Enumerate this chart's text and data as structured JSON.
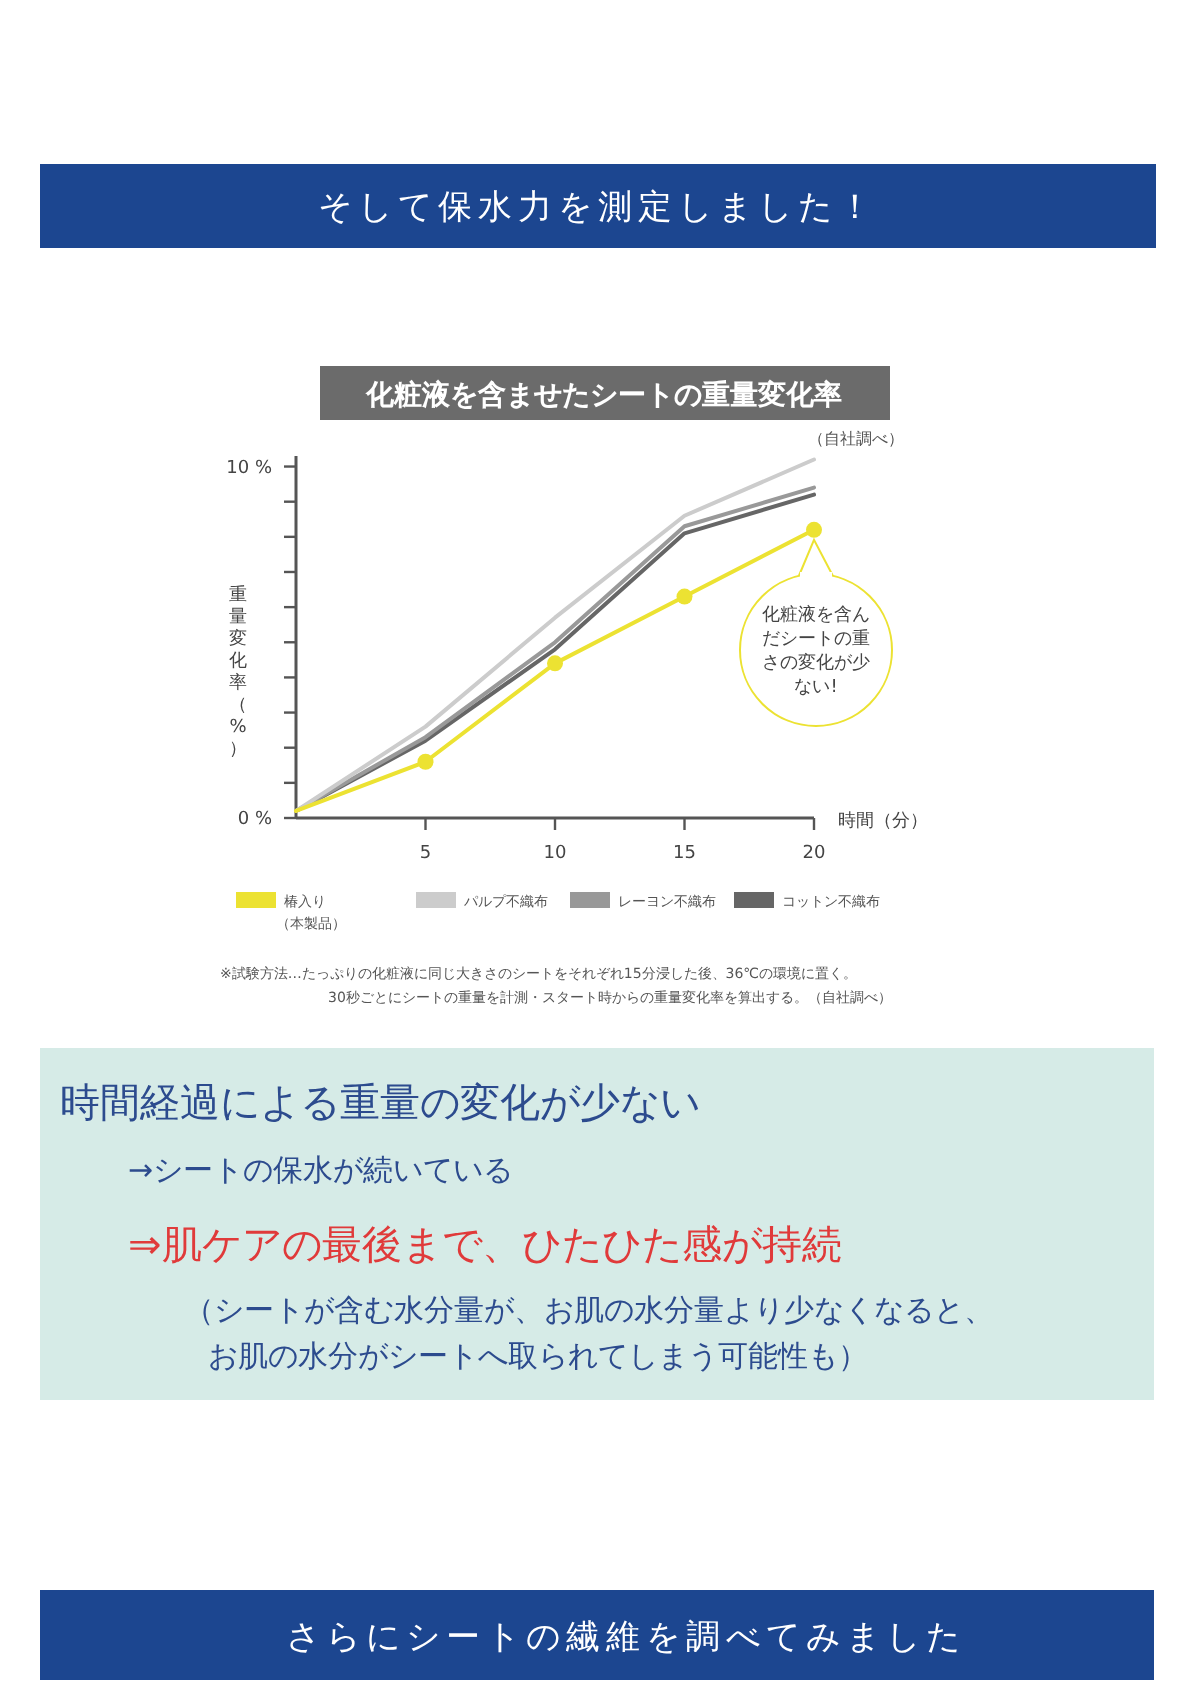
{
  "chart_data": {
    "type": "line",
    "title": "化粧液を含ませたシートの重量変化率",
    "xlabel": "時間（分）",
    "ylabel": "重量変化率（%）",
    "xlim": [
      0,
      20
    ],
    "xticks": [
      5,
      10,
      15,
      20
    ],
    "ylim": [
      0,
      10.3
    ],
    "yticks": [
      {
        "value": 0,
        "label": "0 %"
      },
      {
        "value": 1,
        "label": null
      },
      {
        "value": 2,
        "label": null
      },
      {
        "value": 3,
        "label": null
      },
      {
        "value": 4,
        "label": null
      },
      {
        "value": 5,
        "label": null
      },
      {
        "value": 6,
        "label": null
      },
      {
        "value": 7,
        "label": null
      },
      {
        "value": 8,
        "label": null
      },
      {
        "value": 9,
        "label": null
      },
      {
        "value": 10,
        "label": "10 %"
      }
    ],
    "x": [
      0,
      5,
      10,
      15,
      20
    ],
    "series": [
      {
        "name": "椿入り（本製品）",
        "color": "#ece232",
        "values": [
          0.2,
          1.6,
          4.4,
          6.3,
          8.2
        ],
        "marker": "circle"
      },
      {
        "name": "パルプ不織布",
        "color": "#cccccc",
        "values": [
          0.2,
          2.6,
          5.7,
          8.6,
          10.2
        ]
      },
      {
        "name": "レーヨン不織布",
        "color": "#999999",
        "values": [
          0.2,
          2.3,
          5.0,
          8.3,
          9.4
        ]
      },
      {
        "name": "コットン不織布",
        "color": "#666666",
        "values": [
          0.2,
          2.2,
          4.8,
          8.1,
          9.2
        ]
      }
    ],
    "legend": "bottom",
    "marker": "none",
    "line_style": "solid",
    "grid": false,
    "annotations": [
      "そして保水力を測定しました！",
      "（自社調べ）",
      "化粧液を含んだシートの重さの変化が少ない!",
      "※試験方法…たっぷりの化粧液に同じ大きさのシートをそれぞれ15分浸した後、36℃の環境に置く。",
      "30秒ごとにシートの重量を計測・スタート時からの重量変化率を算出する。（自社調べ）",
      "時間経過による重量の変化が少ない",
      "→シートの保水が続いている",
      "⇒肌ケアの最後まで、ひたひた感が持続",
      "（シートが含む水分量が、お肌の水分量より少なくなると、",
      "お肌の水分がシートへ取られてしまう可能性も）",
      "さらにシートの繊維を調べてみました"
    ]
  }
}
